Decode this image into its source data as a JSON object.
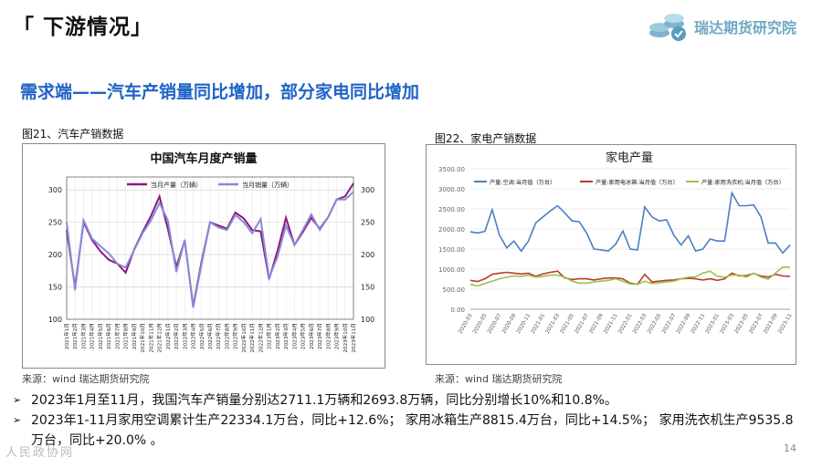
{
  "header": {
    "title": "「 下游情况」",
    "logo_text": "瑞达期货研究院",
    "subtitle": "需求端——汽车产销量同比增加，部分家电同比增加"
  },
  "figures": {
    "fig21_caption": "图21、汽车产销数据",
    "fig22_caption": "图22、家电产销数据",
    "fig21_source": "来源：wind   瑞达期货研究院",
    "fig22_source": "来源：wind   瑞达期货研究院"
  },
  "bullets": [
    "2023年1月至11月，我国汽车产销量分别达2711.1万辆和2693.8万辆，同比分别增长10%和10.8%。",
    "2023年1-11月家用空调累计生产22334.1万台，同比+12.6%； 家用冰箱生产8815.4万台，同比+14.5%； 家用洗衣机生产9535.8万台，同比+20.0% 。"
  ],
  "footer": {
    "page_number": "14",
    "watermark": "人民政协网"
  },
  "colors": {
    "car_production": "#8a1a7e",
    "car_sales": "#8a8ad8",
    "ac": "#4a7fbf",
    "fridge": "#c0392b",
    "washer": "#9bc24a",
    "subtitle": "#1f63c6"
  },
  "chart_data": [
    {
      "type": "line",
      "title": "中国汽车月度产销量",
      "x": [
        "2021年1月",
        "2021年2月",
        "2021年3月",
        "2021年4月",
        "2021年5月",
        "2021年6月",
        "2021年7月",
        "2021年8月",
        "2021年9月",
        "2021年10月",
        "2021年11月",
        "2021年12月",
        "2022年1月",
        "2022年2月",
        "2022年3月",
        "2022年4月",
        "2022年5月",
        "2022年6月",
        "2022年7月",
        "2022年8月",
        "2022年9月",
        "2022年10月",
        "2022年11月",
        "2022年12月",
        "2023年1月",
        "2023年2月",
        "2023年3月",
        "2023年4月",
        "2023年5月",
        "2023年6月",
        "2023年7月",
        "2023年8月",
        "2023年9月",
        "2023年10月",
        "2023年11月"
      ],
      "series": [
        {
          "name": "当月产量（万辆）",
          "values": [
            238,
            150,
            250,
            223,
            205,
            192,
            186,
            172,
            208,
            235,
            260,
            290,
            240,
            181,
            222,
            120,
            190,
            250,
            245,
            240,
            265,
            256,
            238,
            236,
            162,
            206,
            257,
            215,
            235,
            257,
            240,
            258,
            285,
            290,
            310
          ]
        },
        {
          "name": "当月销量（万辆）",
          "values": [
            250,
            145,
            253,
            225,
            213,
            202,
            186,
            180,
            207,
            233,
            253,
            280,
            253,
            173,
            223,
            118,
            186,
            250,
            242,
            238,
            261,
            250,
            233,
            255,
            164,
            197,
            245,
            215,
            238,
            262,
            238,
            258,
            285,
            285,
            297
          ]
        }
      ],
      "ylim": [
        100,
        320
      ],
      "yticks": [
        100,
        150,
        200,
        250,
        300
      ],
      "xlabel": "",
      "ylabel": "",
      "grid": true,
      "legend": "top"
    },
    {
      "type": "line",
      "title": "家电产量",
      "x": [
        "2020-03",
        "2020-04",
        "2020-05",
        "2020-06",
        "2020-07",
        "2020-08",
        "2020-09",
        "2020-10",
        "2020-11",
        "2020-12",
        "2021-01",
        "2021-02",
        "2021-03",
        "2021-04",
        "2021-05",
        "2021-06",
        "2021-07",
        "2021-08",
        "2021-09",
        "2021-10",
        "2021-11",
        "2021-12",
        "2022-01",
        "2022-02",
        "2022-03",
        "2022-04",
        "2022-05",
        "2022-06",
        "2022-07",
        "2022-08",
        "2022-09",
        "2022-10",
        "2022-11",
        "2022-12",
        "2023-01",
        "2023-02",
        "2023-03",
        "2023-04",
        "2023-05",
        "2023-06",
        "2023-07",
        "2023-08",
        "2023-09",
        "2023-10",
        "2023-11"
      ],
      "xticks": [
        "2020-03",
        "2020-05",
        "2020-07",
        "2020-09",
        "2020-11",
        "2021-01",
        "2021-03",
        "2021-05",
        "2021-07",
        "2021-09",
        "2021-11",
        "2022-01",
        "2022-03",
        "2022-05",
        "2022-07",
        "2022-09",
        "2022-11",
        "2023-01",
        "2023-03",
        "2023-05",
        "2023-07",
        "2023-09",
        "2023-11"
      ],
      "series": [
        {
          "name": "产量:空调:当月值（万台）",
          "values": [
            1930,
            1900,
            1940,
            2480,
            1850,
            1530,
            1700,
            1450,
            1700,
            2150,
            2300,
            2450,
            2580,
            2400,
            2200,
            2180,
            1900,
            1500,
            1480,
            1450,
            1620,
            1950,
            1500,
            1480,
            2550,
            2300,
            2200,
            2230,
            1850,
            1600,
            1830,
            1450,
            1500,
            1750,
            1700,
            1700,
            2900,
            2580,
            2580,
            2600,
            2300,
            1650,
            1650,
            1400,
            1600
          ]
        },
        {
          "name": "产量:家用电冰箱:当月值（万台）",
          "values": [
            720,
            690,
            760,
            870,
            900,
            920,
            900,
            880,
            900,
            820,
            880,
            920,
            950,
            780,
            740,
            760,
            760,
            730,
            760,
            780,
            780,
            760,
            650,
            620,
            870,
            680,
            700,
            720,
            730,
            760,
            770,
            760,
            730,
            760,
            720,
            760,
            900,
            830,
            840,
            890,
            830,
            800,
            870,
            830,
            820
          ]
        },
        {
          "name": "产量:家用洗衣机:当月值（万台）",
          "values": [
            620,
            580,
            640,
            700,
            760,
            800,
            830,
            820,
            850,
            800,
            820,
            850,
            850,
            800,
            700,
            650,
            650,
            680,
            700,
            720,
            760,
            700,
            630,
            620,
            700,
            640,
            660,
            680,
            700,
            760,
            800,
            810,
            900,
            950,
            820,
            800,
            850,
            850,
            800,
            900,
            800,
            750,
            900,
            1050,
            1050
          ]
        }
      ],
      "ylim": [
        0,
        3500
      ],
      "yticks": [
        0,
        500,
        1000,
        1500,
        2000,
        2500,
        3000,
        3500
      ],
      "ytick_labels": [
        "0.00",
        "500.00",
        "1000.00",
        "1500.00",
        "2000.00",
        "2500.00",
        "3000.00",
        "3500.00"
      ],
      "xlabel": "",
      "ylabel": "",
      "grid": true,
      "legend": "top"
    }
  ]
}
